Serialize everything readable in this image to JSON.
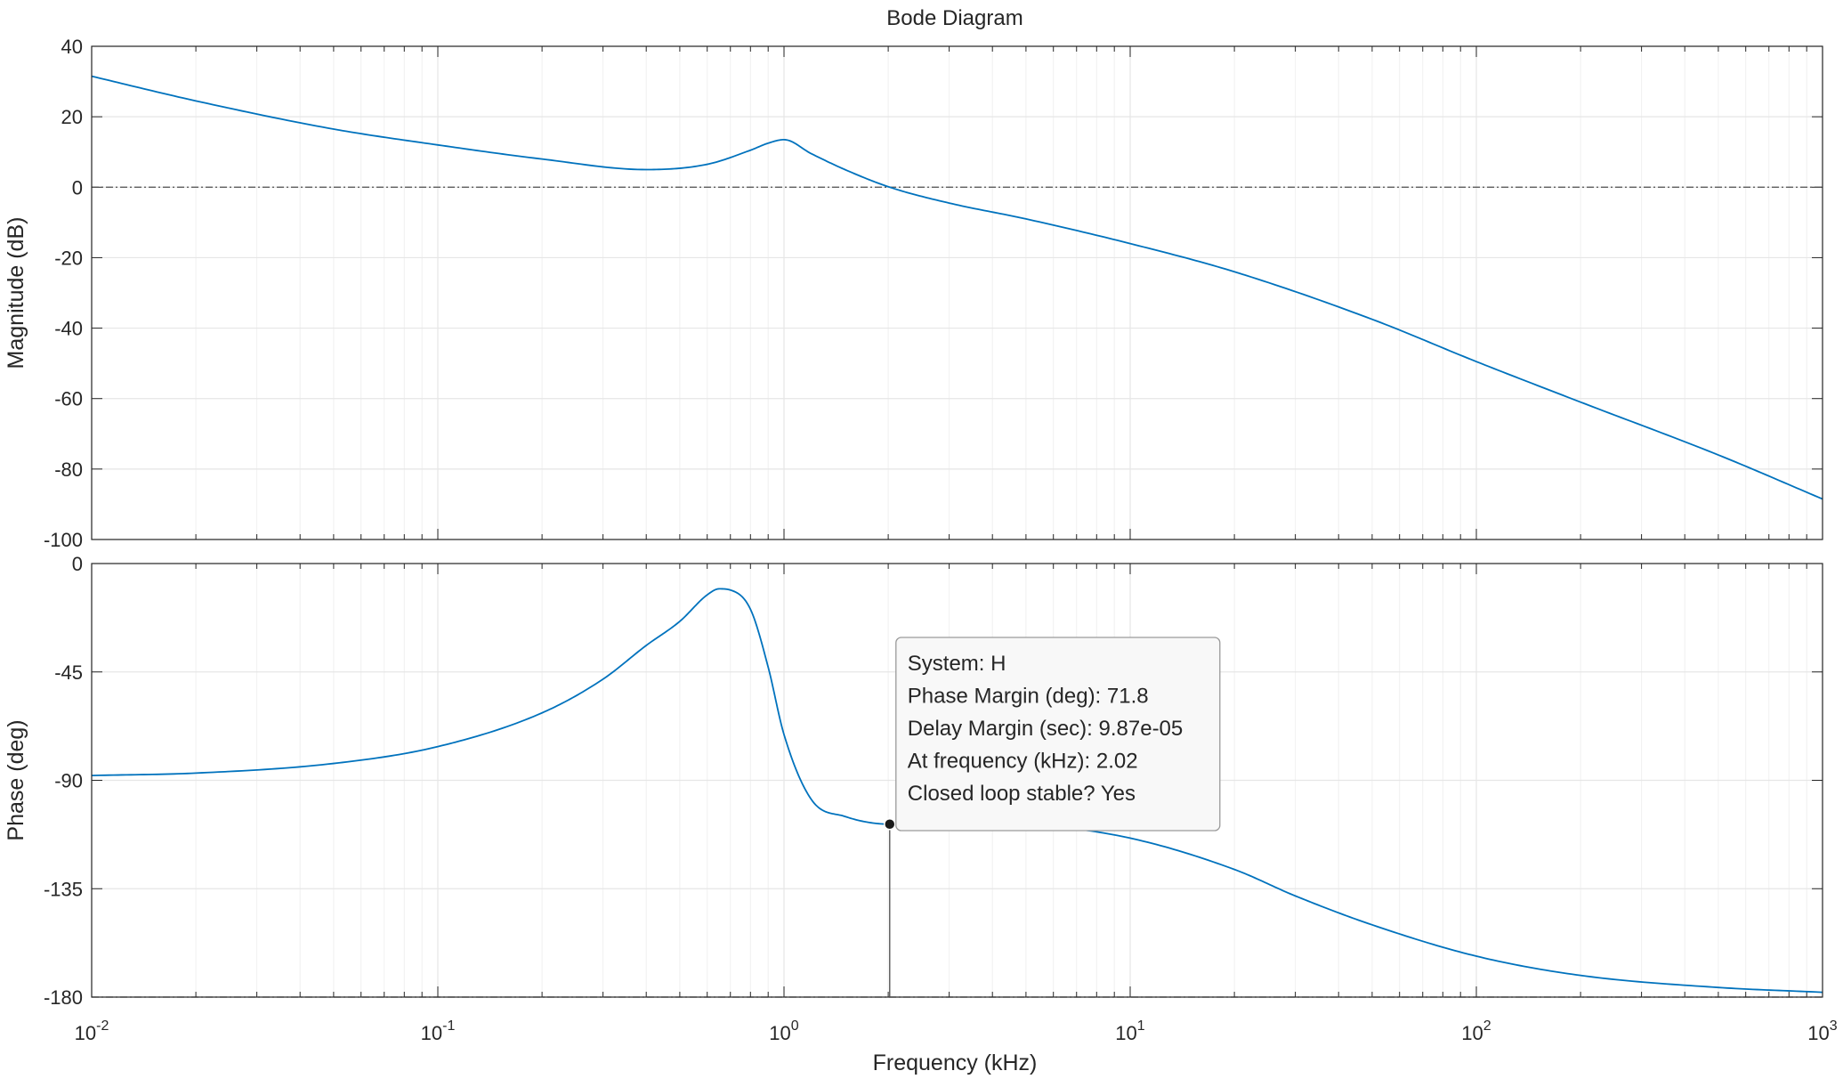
{
  "chart_data": {
    "type": "line",
    "title": "Bode Diagram",
    "xlabel": "Frequency  (kHz)",
    "xscale": "log",
    "xlim": [
      0.01,
      1000
    ],
    "x_ticks": [
      {
        "value": 0.01,
        "base": "10",
        "exp": "-2"
      },
      {
        "value": 0.1,
        "base": "10",
        "exp": "-1"
      },
      {
        "value": 1,
        "base": "10",
        "exp": "0"
      },
      {
        "value": 10,
        "base": "10",
        "exp": "1"
      },
      {
        "value": 100,
        "base": "10",
        "exp": "2"
      },
      {
        "value": 1000,
        "base": "10",
        "exp": "3"
      }
    ],
    "grid": true,
    "colors": {
      "series": "#0072BD",
      "axis": "#262626",
      "grid": "#e6e6e6",
      "reference_line": "#4d4d4d",
      "marker": "#1a1a1a"
    },
    "panels": [
      {
        "id": "magnitude",
        "ylabel": "Magnitude (dB)",
        "ylim": [
          -100,
          40
        ],
        "y_ticks": [
          40,
          20,
          0,
          -20,
          -40,
          -60,
          -80,
          -100
        ],
        "y_tick_labels": [
          "40",
          "20",
          "0",
          "-20",
          "-40",
          "-60",
          "-80",
          "-100"
        ],
        "reference_line": 0,
        "series": [
          {
            "x": [
              0.01,
              0.02,
              0.05,
              0.1,
              0.2,
              0.4,
              0.6,
              0.8,
              0.9,
              1.0,
              1.2,
              1.5,
              2.02,
              3,
              5,
              10,
              20,
              50,
              100,
              200,
              500,
              1000
            ],
            "y": [
              31.5,
              24.5,
              16.5,
              12.0,
              8.0,
              5.0,
              6.5,
              10.5,
              12.5,
              13.5,
              9.5,
              5.0,
              0.0,
              -4.5,
              -9.0,
              -16.0,
              -24.0,
              -37.5,
              -49.5,
              -61.0,
              -76.0,
              -88.5
            ]
          }
        ]
      },
      {
        "id": "phase",
        "ylabel": "Phase (deg)",
        "ylim": [
          -180,
          0
        ],
        "y_ticks": [
          0,
          -45,
          -90,
          -135,
          -180
        ],
        "y_tick_labels": [
          "0",
          "-45",
          "-90",
          "-135",
          "-180"
        ],
        "reference_line": -180,
        "series": [
          {
            "x": [
              0.01,
              0.02,
              0.05,
              0.1,
              0.2,
              0.3,
              0.4,
              0.5,
              0.6,
              0.65,
              0.7,
              0.8,
              0.9,
              1.0,
              1.2,
              1.5,
              2.02,
              3,
              5,
              10,
              20,
              30,
              50,
              100,
              200,
              500,
              1000
            ],
            "y": [
              -88,
              -87,
              -83,
              -76,
              -62,
              -48,
              -34,
              -24,
              -13,
              -10.5,
              -11,
              -19,
              -43,
              -71,
              -98,
              -105,
              -108.2,
              -107,
              -108,
              -114,
              -127,
              -138,
              -150,
              -163,
              -171,
              -176,
              -178
            ]
          }
        ]
      }
    ],
    "marker": {
      "panel": "phase",
      "x": 2.02,
      "y": -108.2
    },
    "datatip": {
      "lines": [
        "System: H",
        "Phase Margin (deg): 71.8",
        "Delay Margin (sec): 9.87e-05",
        "At frequency (kHz): 2.02",
        "Closed loop stable? Yes"
      ]
    }
  }
}
